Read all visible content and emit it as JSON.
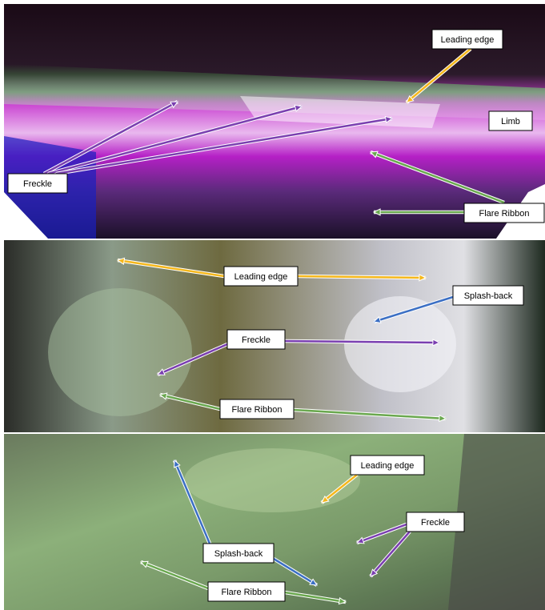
{
  "panels": [
    {
      "labels": [
        "Leading edge",
        "Limb",
        "Freckle",
        "Flare Ribbon"
      ]
    },
    {
      "labels": [
        "Leading edge",
        "Splash-back",
        "Freckle",
        "Flare Ribbon"
      ]
    },
    {
      "labels": [
        "Leading edge",
        "Freckle",
        "Splash-back",
        "Flare Ribbon"
      ]
    }
  ]
}
